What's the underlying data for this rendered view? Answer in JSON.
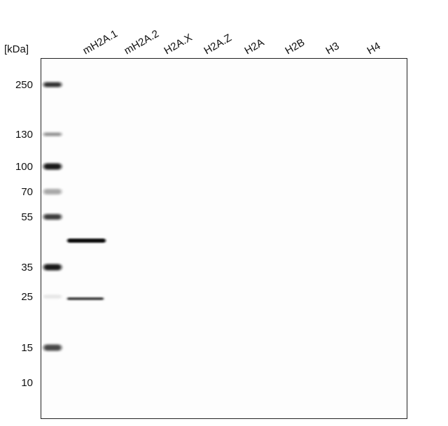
{
  "unit_label": "[kDa]",
  "lanes": [
    "mH2A.1",
    "mH2A.2",
    "H2A.X",
    "H2A.Z",
    "H2A",
    "H2B",
    "H3",
    "H4"
  ],
  "markers": [
    "250",
    "130",
    "100",
    "70",
    "55",
    "35",
    "25",
    "15",
    "10"
  ]
}
